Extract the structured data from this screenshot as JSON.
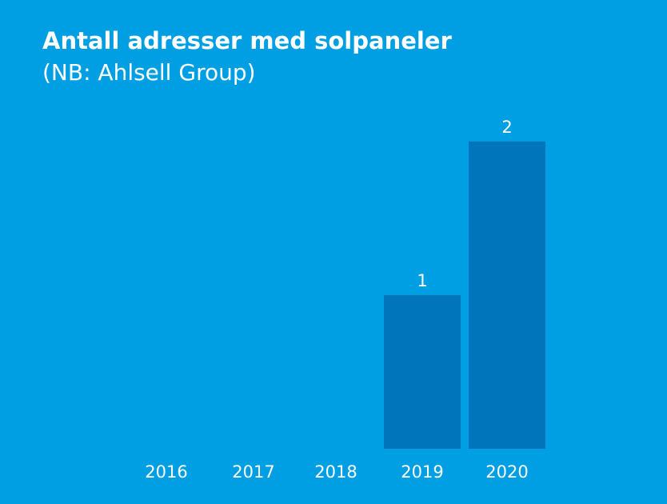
{
  "colors": {
    "background": "#009fe3",
    "bar": "#0075bc",
    "text": "#ffffff"
  },
  "chart_data": {
    "type": "bar",
    "title": "Antall adresser med solpaneler",
    "subtitle": "(NB: Ahlsell Group)",
    "xlabel": "",
    "ylabel": "",
    "categories": [
      "2016",
      "2017",
      "2018",
      "2019",
      "2020"
    ],
    "values": [
      0,
      0,
      0,
      1,
      2
    ],
    "data_labels": [
      "",
      "",
      "",
      "1",
      "2"
    ],
    "ylim": [
      0,
      2.15
    ],
    "grid": false,
    "legend": "none"
  }
}
